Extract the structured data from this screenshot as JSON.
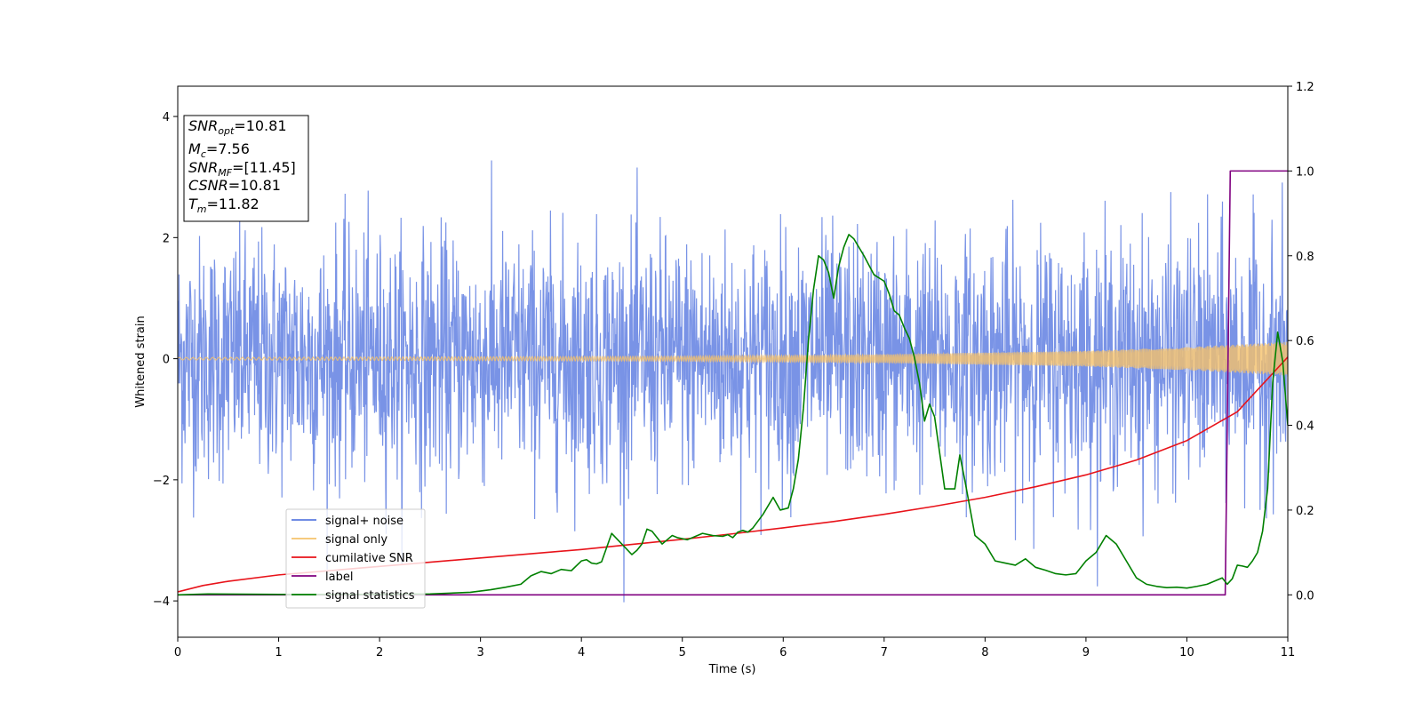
{
  "chart_data": {
    "type": "line",
    "xlabel": "Time (s)",
    "ylabel": "Whitened strain",
    "xlim": [
      0,
      11
    ],
    "ylim": [
      -4.6,
      4.5
    ],
    "y2lim": [
      -0.1,
      1.2
    ],
    "x_ticks": [
      "0",
      "1",
      "2",
      "3",
      "4",
      "5",
      "6",
      "7",
      "8",
      "9",
      "10",
      "11"
    ],
    "y_ticks": [
      "−4",
      "−2",
      "0",
      "2",
      "4"
    ],
    "y2_ticks": [
      "0.0",
      "0.2",
      "0.4",
      "0.6",
      "0.8",
      "1.0",
      "1.2"
    ],
    "grid": false,
    "info_box": [
      {
        "main": "SNR",
        "sub": "opt",
        "rest": "=10.81"
      },
      {
        "main": "M",
        "sub": "c",
        "rest": "=7.56"
      },
      {
        "main": "SNR",
        "sub": "MF",
        "rest": "=[11.45]"
      },
      {
        "main": "CSNR",
        "sub": "",
        "rest": "=10.81"
      },
      {
        "main": "T",
        "sub": "m",
        "rest": "=11.82"
      }
    ],
    "legend": {
      "placement": "lower-left",
      "entries": [
        {
          "label": "signal+ noise",
          "color": "#5b7be0"
        },
        {
          "label": "signal only",
          "color": "#f5c26b"
        },
        {
          "label": "cumilative SNR",
          "color": "#e8131a"
        },
        {
          "label": "label",
          "color": "#800080"
        },
        {
          "label": "signal statistics",
          "color": "#008000"
        }
      ]
    },
    "series": [
      {
        "name": "signal+ noise",
        "axis": "left",
        "color": "#5b7be0",
        "kind": "noise",
        "x_range": [
          0,
          11
        ],
        "mean": 0,
        "std": 1.0,
        "min": -4.15,
        "max": 4.07
      },
      {
        "name": "signal only",
        "axis": "left",
        "color": "#f5c26b",
        "kind": "chirp",
        "x_range": [
          0,
          11
        ],
        "amplitude_points": [
          [
            0,
            0.02
          ],
          [
            5,
            0.04
          ],
          [
            7,
            0.07
          ],
          [
            9,
            0.13
          ],
          [
            10,
            0.19
          ],
          [
            11,
            0.28
          ]
        ]
      },
      {
        "name": "cumilative SNR",
        "axis": "right",
        "color": "#e8131a",
        "x": [
          0,
          0.25,
          0.5,
          1,
          1.5,
          2,
          2.5,
          3,
          3.5,
          4,
          4.5,
          5,
          5.5,
          6,
          6.5,
          7,
          7.5,
          8,
          8.5,
          9,
          9.5,
          10,
          10.5,
          11
        ],
        "y": [
          0.007,
          0.022,
          0.032,
          0.047,
          0.057,
          0.067,
          0.077,
          0.087,
          0.097,
          0.107,
          0.119,
          0.131,
          0.144,
          0.158,
          0.173,
          0.19,
          0.209,
          0.23,
          0.255,
          0.283,
          0.318,
          0.364,
          0.432,
          0.561
        ]
      },
      {
        "name": "label",
        "axis": "right",
        "color": "#800080",
        "x": [
          0,
          10.38,
          10.43,
          11
        ],
        "y": [
          0,
          0,
          1.0,
          1.0
        ]
      },
      {
        "name": "signal statistics",
        "axis": "right",
        "color": "#008000",
        "x": [
          0,
          0.3,
          1,
          2,
          2.5,
          2.9,
          3.1,
          3.25,
          3.4,
          3.5,
          3.6,
          3.7,
          3.8,
          3.9,
          4.0,
          4.05,
          4.1,
          4.15,
          4.2,
          4.3,
          4.4,
          4.5,
          4.55,
          4.6,
          4.65,
          4.7,
          4.8,
          4.85,
          4.9,
          4.95,
          5.05,
          5.2,
          5.3,
          5.4,
          5.45,
          5.5,
          5.55,
          5.6,
          5.65,
          5.7,
          5.8,
          5.9,
          5.97,
          6.05,
          6.1,
          6.15,
          6.2,
          6.25,
          6.3,
          6.35,
          6.4,
          6.45,
          6.5,
          6.55,
          6.6,
          6.65,
          6.7,
          6.75,
          6.8,
          6.9,
          7.0,
          7.05,
          7.1,
          7.15,
          7.2,
          7.25,
          7.3,
          7.35,
          7.4,
          7.45,
          7.5,
          7.6,
          7.7,
          7.75,
          7.8,
          7.9,
          8.0,
          8.1,
          8.2,
          8.3,
          8.4,
          8.5,
          8.6,
          8.7,
          8.8,
          8.9,
          9.0,
          9.1,
          9.2,
          9.3,
          9.4,
          9.5,
          9.6,
          9.7,
          9.8,
          9.9,
          10.0,
          10.1,
          10.2,
          10.3,
          10.35,
          10.4,
          10.45,
          10.5,
          10.55,
          10.6,
          10.65,
          10.7,
          10.75,
          10.8,
          10.85,
          10.9,
          10.95,
          11.0
        ],
        "y": [
          0.0,
          0.002,
          0.001,
          0.001,
          0.002,
          0.006,
          0.012,
          0.018,
          0.025,
          0.045,
          0.055,
          0.05,
          0.06,
          0.057,
          0.08,
          0.083,
          0.075,
          0.073,
          0.078,
          0.145,
          0.12,
          0.095,
          0.105,
          0.12,
          0.155,
          0.15,
          0.12,
          0.13,
          0.14,
          0.135,
          0.13,
          0.145,
          0.14,
          0.138,
          0.142,
          0.135,
          0.148,
          0.152,
          0.148,
          0.158,
          0.19,
          0.23,
          0.2,
          0.205,
          0.25,
          0.32,
          0.44,
          0.6,
          0.72,
          0.8,
          0.79,
          0.76,
          0.7,
          0.775,
          0.82,
          0.85,
          0.84,
          0.82,
          0.8,
          0.755,
          0.74,
          0.71,
          0.67,
          0.66,
          0.63,
          0.605,
          0.56,
          0.5,
          0.41,
          0.45,
          0.42,
          0.25,
          0.25,
          0.33,
          0.27,
          0.14,
          0.12,
          0.08,
          0.075,
          0.07,
          0.085,
          0.065,
          0.058,
          0.05,
          0.047,
          0.05,
          0.08,
          0.1,
          0.14,
          0.12,
          0.08,
          0.04,
          0.025,
          0.02,
          0.017,
          0.018,
          0.016,
          0.02,
          0.025,
          0.035,
          0.04,
          0.025,
          0.038,
          0.07,
          0.068,
          0.065,
          0.08,
          0.1,
          0.15,
          0.25,
          0.5,
          0.62,
          0.55,
          0.4
        ]
      }
    ]
  }
}
